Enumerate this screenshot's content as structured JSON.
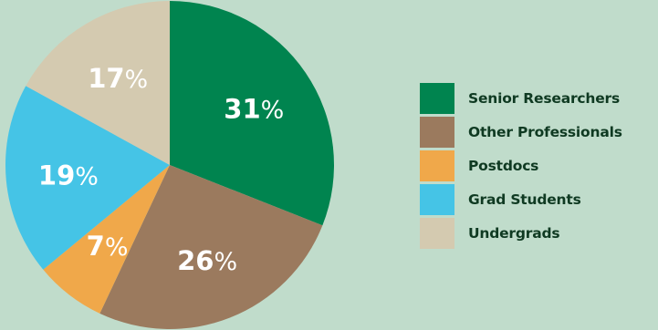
{
  "colors": {
    "background": "#c0dccb",
    "label_text": "#ffffff",
    "legend_text": "#0f3a22"
  },
  "chart_data": {
    "type": "pie",
    "percent_sign": "%",
    "categories": [
      "Senior Researchers",
      "Other Professionals",
      "Postdocs",
      "Grad Students",
      "Undergrads"
    ],
    "values": [
      31,
      26,
      7,
      19,
      17
    ],
    "labels": [
      "31",
      "26",
      "7",
      "19",
      "17"
    ],
    "colors": [
      "#00844f",
      "#9b7a5e",
      "#f0a84a",
      "#45c4e6",
      "#d4cab0"
    ],
    "start": "12 o'clock",
    "direction": "clockwise",
    "legend_position": "right"
  }
}
